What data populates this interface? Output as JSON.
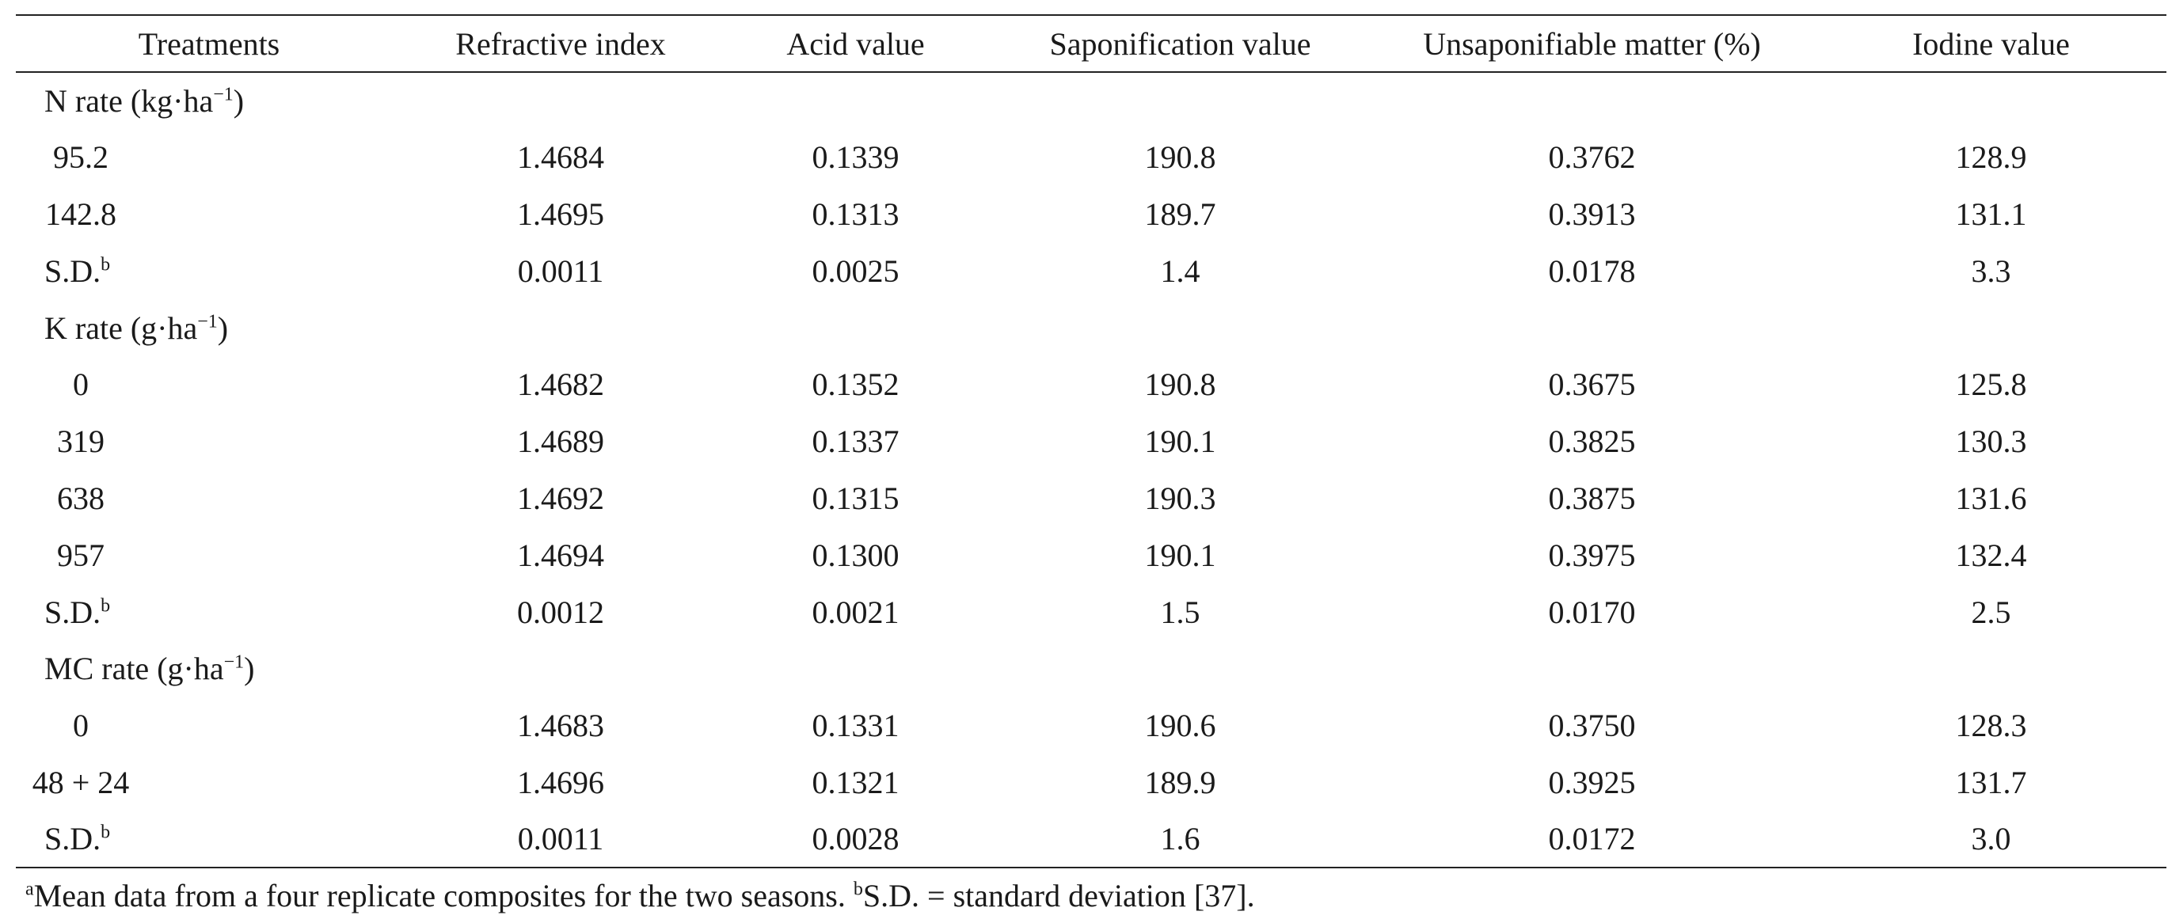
{
  "headers": [
    "Treatments",
    "Refractive index",
    "Acid value",
    "Saponification value",
    "Unsaponifiable matter (%)",
    "Iodine value"
  ],
  "groups": [
    {
      "label": "N rate (kg·ha",
      "label_sup": "−1",
      "label_end": ")",
      "rows": [
        {
          "t": "95.2",
          "v": [
            "1.4684",
            "0.1339",
            "190.8",
            "0.3762",
            "128.9"
          ]
        },
        {
          "t": "142.8",
          "v": [
            "1.4695",
            "0.1313",
            "189.7",
            "0.3913",
            "131.1"
          ]
        }
      ],
      "sd": [
        "0.0011",
        "0.0025",
        "1.4",
        "0.0178",
        "3.3"
      ]
    },
    {
      "label": "K rate (g·ha",
      "label_sup": "−1",
      "label_end": ")",
      "rows": [
        {
          "t": "0",
          "v": [
            "1.4682",
            "0.1352",
            "190.8",
            "0.3675",
            "125.8"
          ]
        },
        {
          "t": "319",
          "v": [
            "1.4689",
            "0.1337",
            "190.1",
            "0.3825",
            "130.3"
          ]
        },
        {
          "t": "638",
          "v": [
            "1.4692",
            "0.1315",
            "190.3",
            "0.3875",
            "131.6"
          ]
        },
        {
          "t": "957",
          "v": [
            "1.4694",
            "0.1300",
            "190.1",
            "0.3975",
            "132.4"
          ]
        }
      ],
      "sd": [
        "0.0012",
        "0.0021",
        "1.5",
        "0.0170",
        "2.5"
      ]
    },
    {
      "label": "MC rate (g·ha",
      "label_sup": "−1",
      "label_end": ")",
      "rows": [
        {
          "t": "0",
          "v": [
            "1.4683",
            "0.1331",
            "190.6",
            "0.3750",
            "128.3"
          ]
        },
        {
          "t": "48 + 24",
          "v": [
            "1.4696",
            "0.1321",
            "189.9",
            "0.3925",
            "131.7"
          ]
        }
      ],
      "sd": [
        "0.0011",
        "0.0028",
        "1.6",
        "0.0172",
        "3.0"
      ]
    }
  ],
  "sd_label": "S.D.",
  "sd_sup": "b",
  "footnote": {
    "a_sup": "a",
    "a_text": "Mean data from a four replicate composites for the two seasons. ",
    "b_sup": "b",
    "b_text": "S.D. = standard deviation [37]."
  }
}
